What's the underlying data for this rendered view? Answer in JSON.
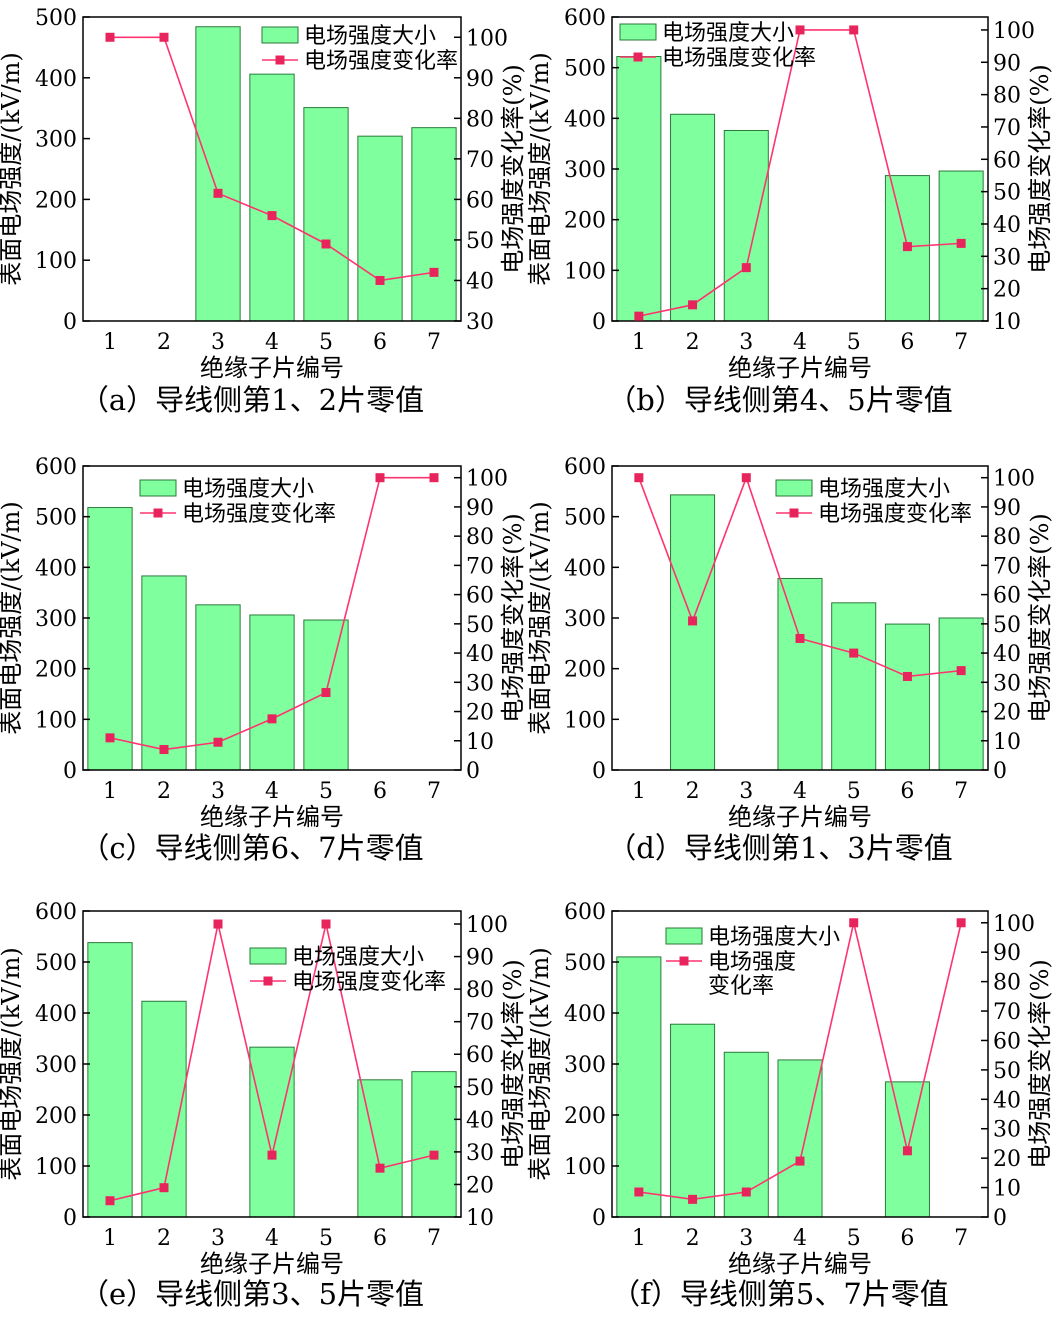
{
  "colors": {
    "bar_fill": "#80ff9f",
    "bar_stroke": "#2a7a3a",
    "line": "#ff3370",
    "marker": "#e8245c",
    "axis": "#000000"
  },
  "chart_data": [
    {
      "type": "bar+line",
      "caption": "（a）导线侧第1、2片零值",
      "xlabel": "绝缘子片编号",
      "ylabel": "表面电场强度/(kV/m)",
      "y2label": "电场强度变化率(%)",
      "categories": [
        "1",
        "2",
        "3",
        "4",
        "5",
        "6",
        "7"
      ],
      "ylim": [
        0,
        500
      ],
      "yticks": [
        0,
        100,
        200,
        300,
        400,
        500
      ],
      "y2lim": [
        30,
        105
      ],
      "y2ticks": [
        30,
        40,
        50,
        60,
        70,
        80,
        90,
        100
      ],
      "legend": [
        "电场强度大小",
        "电场强度变化率"
      ],
      "legend_position": "top-right",
      "series": [
        {
          "name": "电场强度大小",
          "type": "bar",
          "values": [
            null,
            null,
            484,
            406,
            351,
            304,
            318
          ]
        },
        {
          "name": "电场强度变化率",
          "type": "line",
          "values": [
            100,
            100,
            61.5,
            56,
            49,
            40,
            42
          ]
        }
      ]
    },
    {
      "type": "bar+line",
      "caption": "（b）导线侧第4、5片零值",
      "xlabel": "绝缘子片编号",
      "ylabel": "表面电场强度/(kV/m)",
      "y2label": "电场强度变化率(%)",
      "categories": [
        "1",
        "2",
        "3",
        "4",
        "5",
        "6",
        "7"
      ],
      "ylim": [
        0,
        600
      ],
      "yticks": [
        0,
        100,
        200,
        300,
        400,
        500,
        600
      ],
      "y2lim": [
        10,
        104
      ],
      "y2ticks": [
        10,
        20,
        30,
        40,
        50,
        60,
        70,
        80,
        90,
        100
      ],
      "legend": [
        "电场强度大小",
        "电场强度变化率"
      ],
      "legend_position": "top-left",
      "series": [
        {
          "name": "电场强度大小",
          "type": "bar",
          "values": [
            522,
            408,
            376,
            null,
            null,
            287,
            296
          ]
        },
        {
          "name": "电场强度变化率",
          "type": "line",
          "values": [
            11.5,
            15,
            26.5,
            100,
            100,
            33,
            34
          ]
        }
      ]
    },
    {
      "type": "bar+line",
      "caption": "（c）导线侧第6、7片零值",
      "xlabel": "绝缘子片编号",
      "ylabel": "表面电场强度/(kV/m)",
      "y2label": "电场强度变化率(%)",
      "categories": [
        "1",
        "2",
        "3",
        "4",
        "5",
        "6",
        "7"
      ],
      "ylim": [
        0,
        600
      ],
      "yticks": [
        0,
        100,
        200,
        300,
        400,
        500,
        600
      ],
      "y2lim": [
        0,
        104
      ],
      "y2ticks": [
        0,
        10,
        20,
        30,
        40,
        50,
        60,
        70,
        80,
        90,
        100
      ],
      "legend": [
        "电场强度大小",
        "电场强度变化率"
      ],
      "legend_position": "top-center",
      "series": [
        {
          "name": "电场强度大小",
          "type": "bar",
          "values": [
            518,
            383,
            326,
            306,
            296,
            null,
            null
          ]
        },
        {
          "name": "电场强度变化率",
          "type": "line",
          "values": [
            11,
            7,
            9.5,
            17.5,
            26.5,
            100,
            100
          ]
        }
      ]
    },
    {
      "type": "bar+line",
      "caption": "（d）导线侧第1、3片零值",
      "xlabel": "绝缘子片编号",
      "ylabel": "表面电场强度/(kV/m)",
      "y2label": "电场强度变化率(%)",
      "categories": [
        "1",
        "2",
        "3",
        "4",
        "5",
        "6",
        "7"
      ],
      "ylim": [
        0,
        600
      ],
      "yticks": [
        0,
        100,
        200,
        300,
        400,
        500,
        600
      ],
      "y2lim": [
        0,
        104
      ],
      "y2ticks": [
        0,
        10,
        20,
        30,
        40,
        50,
        60,
        70,
        80,
        90,
        100
      ],
      "legend": [
        "电场强度大小",
        "电场强度变化率"
      ],
      "legend_position": "top-right",
      "series": [
        {
          "name": "电场强度大小",
          "type": "bar",
          "values": [
            null,
            543,
            null,
            378,
            330,
            288,
            300
          ]
        },
        {
          "name": "电场强度变化率",
          "type": "line",
          "values": [
            100,
            51,
            100,
            45,
            40,
            32,
            34
          ]
        }
      ]
    },
    {
      "type": "bar+line",
      "caption": "（e）导线侧第3、5片零值",
      "xlabel": "绝缘子片编号",
      "ylabel": "表面电场强度/(kV/m)",
      "y2label": "电场强度变化率(%)",
      "categories": [
        "1",
        "2",
        "3",
        "4",
        "5",
        "6",
        "7"
      ],
      "ylim": [
        0,
        600
      ],
      "yticks": [
        0,
        100,
        200,
        300,
        400,
        500,
        600
      ],
      "y2lim": [
        10,
        104
      ],
      "y2ticks": [
        10,
        20,
        30,
        40,
        50,
        60,
        70,
        80,
        90,
        100
      ],
      "legend": [
        "电场强度大小",
        "电场强度变化率"
      ],
      "legend_position": "top-right",
      "series": [
        {
          "name": "电场强度大小",
          "type": "bar",
          "values": [
            538,
            423,
            null,
            333,
            null,
            269,
            285
          ]
        },
        {
          "name": "电场强度变化率",
          "type": "line",
          "values": [
            15,
            19,
            100,
            29,
            100,
            25,
            29
          ]
        }
      ]
    },
    {
      "type": "bar+line",
      "caption": "（f）导线侧第5、7片零值",
      "xlabel": "绝缘子片编号",
      "ylabel": "表面电场强度/(kV/m)",
      "y2label": "电场强度变化率(%)",
      "categories": [
        "1",
        "2",
        "3",
        "4",
        "5",
        "6",
        "7"
      ],
      "ylim": [
        0,
        600
      ],
      "yticks": [
        0,
        100,
        200,
        300,
        400,
        500,
        600
      ],
      "y2lim": [
        0,
        104
      ],
      "y2ticks": [
        0,
        10,
        20,
        30,
        40,
        50,
        60,
        70,
        80,
        90,
        100
      ],
      "legend": [
        "电场强度大小",
        "电场强度\n变化率"
      ],
      "legend_position": "top-left",
      "series": [
        {
          "name": "电场强度大小",
          "type": "bar",
          "values": [
            510,
            378,
            323,
            308,
            null,
            265,
            null
          ]
        },
        {
          "name": "电场强度\n变化率",
          "type": "line",
          "values": [
            8.5,
            6,
            8.5,
            19,
            100,
            22.5,
            100
          ]
        }
      ]
    }
  ]
}
